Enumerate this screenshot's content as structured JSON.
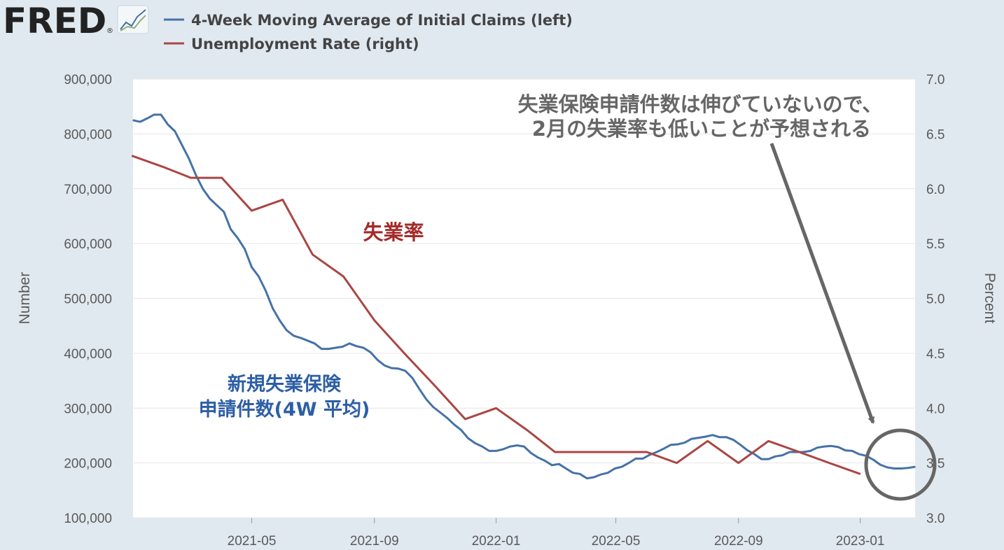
{
  "logo": {
    "text": "FRED",
    "reg_mark": "®",
    "icon": "line-chart-icon"
  },
  "colors": {
    "background": "#e1e9f0",
    "plot_background": "#ffffff",
    "claims": "#4572a7",
    "unemployment": "#aa4643",
    "annotation_gray": "#666666",
    "label_blue": "#2d5ea6",
    "label_red": "#a52a2a"
  },
  "chart_data": {
    "type": "line",
    "legend_position": "top-left",
    "grid": true,
    "xlabel": "",
    "ylabel_left": "Number",
    "ylabel_right": "Percent",
    "x_range": [
      "2021-01-02",
      "2023-02-25"
    ],
    "ylim_left": [
      100000,
      900000
    ],
    "ylim_right": [
      3.0,
      7.0
    ],
    "yticks_left": [
      "100,000",
      "200,000",
      "300,000",
      "400,000",
      "500,000",
      "600,000",
      "700,000",
      "800,000",
      "900,000"
    ],
    "yticks_left_values": [
      100000,
      200000,
      300000,
      400000,
      500000,
      600000,
      700000,
      800000,
      900000
    ],
    "yticks_right": [
      "3.0",
      "3.5",
      "4.0",
      "4.5",
      "5.0",
      "5.5",
      "6.0",
      "6.5",
      "7.0"
    ],
    "yticks_right_values": [
      3.0,
      3.5,
      4.0,
      4.5,
      5.0,
      5.5,
      6.0,
      6.5,
      7.0
    ],
    "xticks": [
      {
        "label": "2021-05",
        "date": "2021-05-01"
      },
      {
        "label": "2021-09",
        "date": "2021-09-01"
      },
      {
        "label": "2022-01",
        "date": "2022-01-01"
      },
      {
        "label": "2022-05",
        "date": "2022-05-01"
      },
      {
        "label": "2022-09",
        "date": "2022-09-01"
      },
      {
        "label": "2023-01",
        "date": "2023-01-01"
      }
    ],
    "series": [
      {
        "name": "4-Week Moving Average of Initial Claims (left)",
        "axis": "left",
        "color": "#4572a7",
        "points": [
          [
            "2021-01-02",
            825000
          ],
          [
            "2021-01-09",
            822000
          ],
          [
            "2021-01-16",
            828000
          ],
          [
            "2021-01-23",
            835000
          ],
          [
            "2021-01-30",
            835000
          ],
          [
            "2021-02-06",
            817000
          ],
          [
            "2021-02-13",
            805000
          ],
          [
            "2021-02-20",
            780000
          ],
          [
            "2021-02-27",
            755000
          ],
          [
            "2021-03-06",
            725000
          ],
          [
            "2021-03-13",
            700000
          ],
          [
            "2021-03-20",
            682000
          ],
          [
            "2021-03-27",
            670000
          ],
          [
            "2021-04-03",
            658000
          ],
          [
            "2021-04-10",
            626000
          ],
          [
            "2021-04-17",
            610000
          ],
          [
            "2021-04-24",
            590000
          ],
          [
            "2021-05-01",
            557000
          ],
          [
            "2021-05-08",
            540000
          ],
          [
            "2021-05-15",
            514000
          ],
          [
            "2021-05-22",
            482000
          ],
          [
            "2021-05-29",
            460000
          ],
          [
            "2021-06-05",
            442000
          ],
          [
            "2021-06-12",
            432000
          ],
          [
            "2021-06-19",
            428000
          ],
          [
            "2021-06-26",
            423000
          ],
          [
            "2021-07-03",
            418000
          ],
          [
            "2021-07-10",
            408000
          ],
          [
            "2021-07-17",
            408000
          ],
          [
            "2021-07-24",
            410000
          ],
          [
            "2021-07-31",
            412000
          ],
          [
            "2021-08-07",
            418000
          ],
          [
            "2021-08-14",
            413000
          ],
          [
            "2021-08-21",
            410000
          ],
          [
            "2021-08-28",
            402000
          ],
          [
            "2021-09-04",
            388000
          ],
          [
            "2021-09-11",
            378000
          ],
          [
            "2021-09-18",
            373000
          ],
          [
            "2021-09-25",
            372000
          ],
          [
            "2021-10-02",
            368000
          ],
          [
            "2021-10-09",
            355000
          ],
          [
            "2021-10-16",
            335000
          ],
          [
            "2021-10-23",
            316000
          ],
          [
            "2021-10-30",
            302000
          ],
          [
            "2021-11-06",
            292000
          ],
          [
            "2021-11-13",
            282000
          ],
          [
            "2021-11-20",
            270000
          ],
          [
            "2021-11-27",
            260000
          ],
          [
            "2021-12-04",
            245000
          ],
          [
            "2021-12-11",
            236000
          ],
          [
            "2021-12-18",
            230000
          ],
          [
            "2021-12-25",
            222000
          ],
          [
            "2022-01-01",
            222000
          ],
          [
            "2022-01-08",
            225000
          ],
          [
            "2022-01-15",
            230000
          ],
          [
            "2022-01-22",
            232000
          ],
          [
            "2022-01-29",
            230000
          ],
          [
            "2022-02-05",
            218000
          ],
          [
            "2022-02-12",
            210000
          ],
          [
            "2022-02-19",
            204000
          ],
          [
            "2022-02-26",
            196000
          ],
          [
            "2022-03-05",
            198000
          ],
          [
            "2022-03-12",
            190000
          ],
          [
            "2022-03-19",
            182000
          ],
          [
            "2022-03-26",
            180000
          ],
          [
            "2022-04-02",
            172000
          ],
          [
            "2022-04-09",
            174000
          ],
          [
            "2022-04-16",
            179000
          ],
          [
            "2022-04-23",
            182000
          ],
          [
            "2022-04-30",
            190000
          ],
          [
            "2022-05-07",
            193000
          ],
          [
            "2022-05-14",
            200000
          ],
          [
            "2022-05-21",
            208000
          ],
          [
            "2022-05-28",
            208000
          ],
          [
            "2022-06-04",
            215000
          ],
          [
            "2022-06-11",
            220000
          ],
          [
            "2022-06-18",
            226000
          ],
          [
            "2022-06-25",
            233000
          ],
          [
            "2022-07-02",
            234000
          ],
          [
            "2022-07-09",
            237000
          ],
          [
            "2022-07-16",
            244000
          ],
          [
            "2022-07-23",
            246000
          ],
          [
            "2022-07-30",
            248000
          ],
          [
            "2022-08-06",
            251000
          ],
          [
            "2022-08-13",
            247000
          ],
          [
            "2022-08-20",
            247000
          ],
          [
            "2022-08-27",
            242000
          ],
          [
            "2022-09-03",
            233000
          ],
          [
            "2022-09-10",
            223000
          ],
          [
            "2022-09-17",
            216000
          ],
          [
            "2022-09-24",
            207000
          ],
          [
            "2022-10-01",
            207000
          ],
          [
            "2022-10-08",
            212000
          ],
          [
            "2022-10-15",
            214000
          ],
          [
            "2022-10-22",
            220000
          ],
          [
            "2022-10-29",
            220000
          ],
          [
            "2022-11-05",
            220000
          ],
          [
            "2022-11-12",
            222000
          ],
          [
            "2022-11-19",
            228000
          ],
          [
            "2022-11-26",
            230000
          ],
          [
            "2022-12-03",
            231000
          ],
          [
            "2022-12-10",
            229000
          ],
          [
            "2022-12-17",
            223000
          ],
          [
            "2022-12-24",
            222000
          ],
          [
            "2022-12-31",
            216000
          ],
          [
            "2023-01-07",
            213000
          ],
          [
            "2023-01-14",
            206000
          ],
          [
            "2023-01-21",
            197000
          ],
          [
            "2023-01-28",
            192000
          ],
          [
            "2023-02-04",
            190000
          ],
          [
            "2023-02-11",
            190000
          ],
          [
            "2023-02-18",
            191000
          ],
          [
            "2023-02-25",
            193000
          ]
        ]
      },
      {
        "name": "Unemployment Rate (right)",
        "axis": "right",
        "color": "#aa4643",
        "points": [
          [
            "2021-01-01",
            6.3
          ],
          [
            "2021-02-01",
            6.2
          ],
          [
            "2021-03-01",
            6.1
          ],
          [
            "2021-04-01",
            6.1
          ],
          [
            "2021-05-01",
            5.8
          ],
          [
            "2021-06-01",
            5.9
          ],
          [
            "2021-07-01",
            5.4
          ],
          [
            "2021-08-01",
            5.2
          ],
          [
            "2021-09-01",
            4.8
          ],
          [
            "2021-10-01",
            4.5
          ],
          [
            "2021-11-01",
            4.2
          ],
          [
            "2021-12-01",
            3.9
          ],
          [
            "2022-01-01",
            4.0
          ],
          [
            "2022-02-01",
            3.8
          ],
          [
            "2022-03-01",
            3.6
          ],
          [
            "2022-04-01",
            3.6
          ],
          [
            "2022-05-01",
            3.6
          ],
          [
            "2022-06-01",
            3.6
          ],
          [
            "2022-07-01",
            3.5
          ],
          [
            "2022-08-01",
            3.7
          ],
          [
            "2022-09-01",
            3.5
          ],
          [
            "2022-10-01",
            3.7
          ],
          [
            "2022-11-01",
            3.6
          ],
          [
            "2022-12-01",
            3.5
          ],
          [
            "2023-01-01",
            3.4
          ]
        ]
      }
    ],
    "annotations": {
      "unemployment_label": "失業率",
      "claims_label_line1": "新規失業保険",
      "claims_label_line2": "申請件数(4W 平均)",
      "note_line1": "失業保険申請件数は伸びていないので、",
      "note_line2": "2月の失業率も低いことが予想される"
    }
  }
}
